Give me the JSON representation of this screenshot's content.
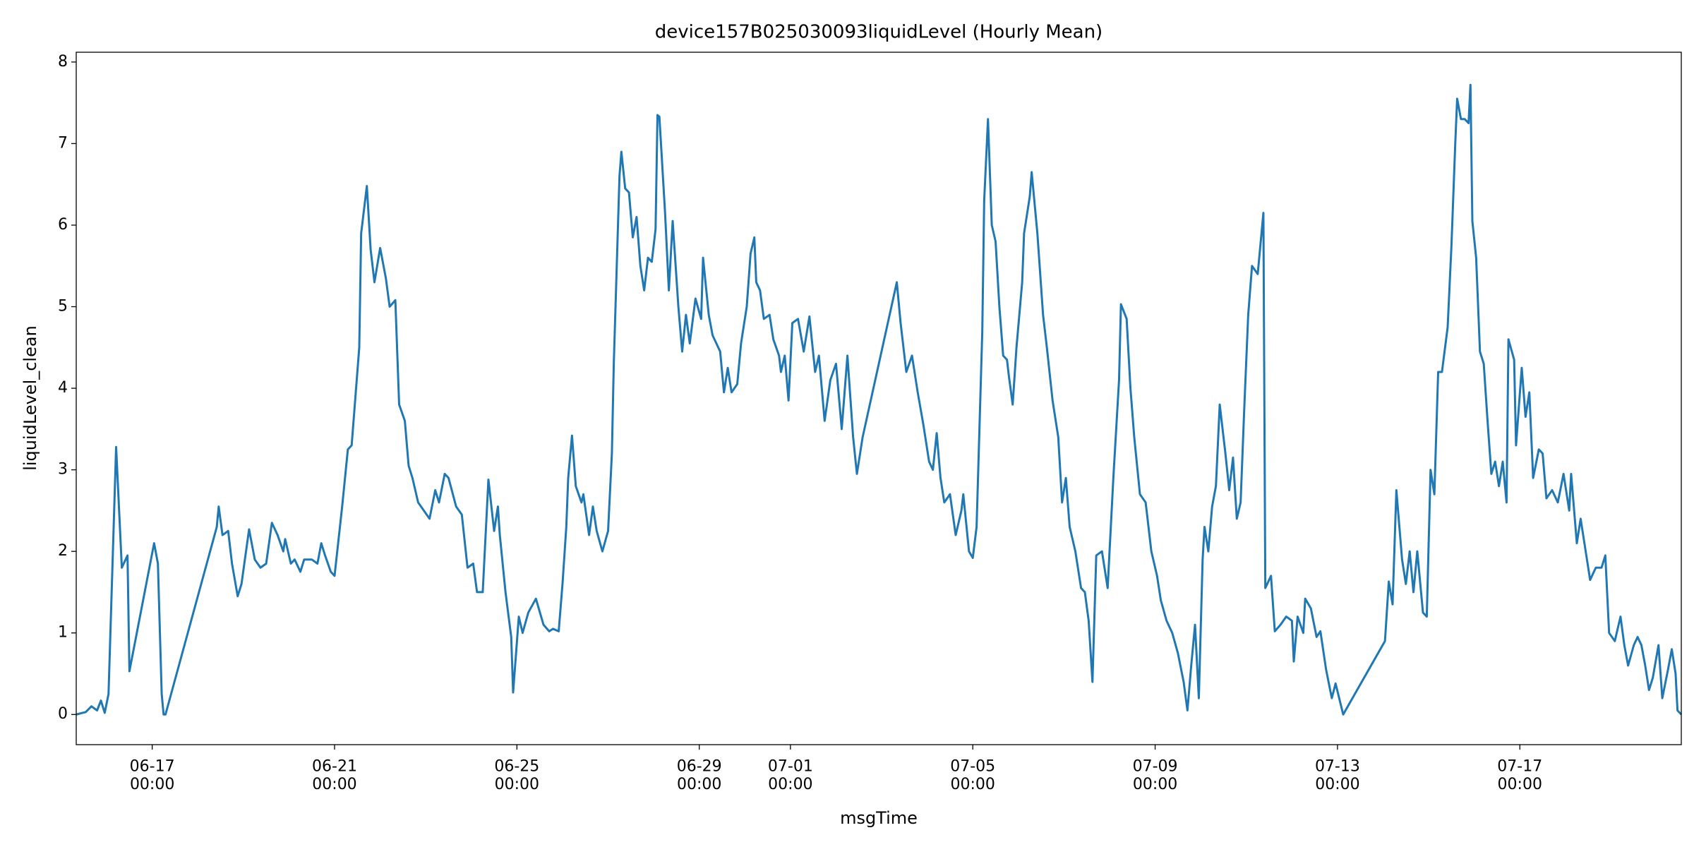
{
  "chart_data": {
    "type": "line",
    "title": "device157B025030093liquidLevel (Hourly Mean)",
    "x_label": "msgTime",
    "y_label": "liquidLevel_clean",
    "color": "#1f77b4",
    "grid": false,
    "x": [
      "06-15 08:00",
      "06-15 13:00",
      "06-15 16:00",
      "06-15 19:00",
      "06-15 21:00",
      "06-15 23:00",
      "06-16 01:00",
      "06-16 05:00",
      "06-16 08:00",
      "06-16 11:00",
      "06-16 12:00",
      "06-17 01:00",
      "06-17 03:00",
      "06-17 05:00",
      "06-17 06:00",
      "06-17 07:00",
      "06-18 10:00",
      "06-18 11:00",
      "06-18 13:00",
      "06-18 16:00",
      "06-18 18:00",
      "06-18 21:00",
      "06-18 23:00",
      "06-19 03:00",
      "06-19 06:00",
      "06-19 09:00",
      "06-19 12:00",
      "06-19 15:00",
      "06-19 18:00",
      "06-19 21:00",
      "06-19 22:00",
      "06-20 01:00",
      "06-20 03:00",
      "06-20 06:00",
      "06-20 08:00",
      "06-20 12:00",
      "06-20 15:00",
      "06-20 17:00",
      "06-20 19:00",
      "06-20 22:00",
      "06-21 00:00",
      "06-21 04:00",
      "06-21 07:00",
      "06-21 09:00",
      "06-21 13:00",
      "06-21 14:00",
      "06-21 17:00",
      "06-21 19:00",
      "06-21 21:00",
      "06-22 00:00",
      "06-22 03:00",
      "06-22 05:00",
      "06-22 08:00",
      "06-22 10:00",
      "06-22 13:00",
      "06-22 15:00",
      "06-22 17:00",
      "06-22 20:00",
      "06-22 23:00",
      "06-23 02:00",
      "06-23 05:00",
      "06-23 07:00",
      "06-23 10:00",
      "06-23 12:00",
      "06-23 16:00",
      "06-23 19:00",
      "06-23 22:00",
      "06-24 01:00",
      "06-24 03:00",
      "06-24 06:00",
      "06-24 09:00",
      "06-24 12:00",
      "06-24 14:00",
      "06-24 15:00",
      "06-24 18:00",
      "06-24 21:00",
      "06-24 22:00",
      "06-25 01:00",
      "06-25 03:00",
      "06-25 06:00",
      "06-25 10:00",
      "06-25 14:00",
      "06-25 17:00",
      "06-25 19:00",
      "06-25 22:00",
      "06-26 00:00",
      "06-26 02:00",
      "06-26 03:00",
      "06-26 05:00",
      "06-26 07:00",
      "06-26 10:00",
      "06-26 11:00",
      "06-26 14:00",
      "06-26 16:00",
      "06-26 18:00",
      "06-26 21:00",
      "06-27 00:00",
      "06-27 02:00",
      "06-27 03:00",
      "06-27 06:00",
      "06-27 07:00",
      "06-27 09:00",
      "06-27 11:00",
      "06-27 13:00",
      "06-27 15:00",
      "06-27 17:00",
      "06-27 19:00",
      "06-27 21:00",
      "06-27 23:00",
      "06-28 01:00",
      "06-28 02:00",
      "06-28 03:00",
      "06-28 06:00",
      "06-28 08:00",
      "06-28 10:00",
      "06-28 13:00",
      "06-28 15:00",
      "06-28 17:00",
      "06-28 19:00",
      "06-28 22:00",
      "06-29 01:00",
      "06-29 02:00",
      "06-29 05:00",
      "06-29 07:00",
      "06-29 09:00",
      "06-29 11:00",
      "06-29 13:00",
      "06-29 15:00",
      "06-29 17:00",
      "06-29 20:00",
      "06-29 22:00",
      "06-30 01:00",
      "06-30 03:00",
      "06-30 05:00",
      "06-30 06:00",
      "06-30 08:00",
      "06-30 10:00",
      "06-30 13:00",
      "06-30 15:00",
      "06-30 18:00",
      "06-30 19:00",
      "06-30 21:00",
      "06-30 23:00",
      "07-01 01:00",
      "07-01 04:00",
      "07-01 07:00",
      "07-01 10:00",
      "07-01 13:00",
      "07-01 15:00",
      "07-01 18:00",
      "07-01 21:00",
      "07-02 00:00",
      "07-02 03:00",
      "07-02 06:00",
      "07-02 09:00",
      "07-02 11:00",
      "07-02 14:00",
      "07-03 08:00",
      "07-03 10:00",
      "07-03 13:00",
      "07-03 16:00",
      "07-03 19:00",
      "07-03 22:00",
      "07-04 01:00",
      "07-04 03:00",
      "07-04 05:00",
      "07-04 07:00",
      "07-04 09:00",
      "07-04 12:00",
      "07-04 15:00",
      "07-04 18:00",
      "07-04 19:00",
      "07-04 22:00",
      "07-05 00:00",
      "07-05 02:00",
      "07-05 05:00",
      "07-05 06:00",
      "07-05 08:00",
      "07-05 10:00",
      "07-05 12:00",
      "07-05 14:00",
      "07-05 16:00",
      "07-05 18:00",
      "07-05 19:00",
      "07-05 21:00",
      "07-05 23:00",
      "07-06 02:00",
      "07-06 03:00",
      "07-06 06:00",
      "07-06 07:00",
      "07-06 10:00",
      "07-06 13:00",
      "07-06 15:00",
      "07-06 18:00",
      "07-06 21:00",
      "07-06 23:00",
      "07-07 01:00",
      "07-07 03:00",
      "07-07 06:00",
      "07-07 09:00",
      "07-07 11:00",
      "07-07 13:00",
      "07-07 15:00",
      "07-07 17:00",
      "07-07 20:00",
      "07-07 23:00",
      "07-08 02:00",
      "07-08 05:00",
      "07-08 06:00",
      "07-08 09:00",
      "07-08 11:00",
      "07-08 13:00",
      "07-08 16:00",
      "07-08 19:00",
      "07-08 22:00",
      "07-09 01:00",
      "07-09 03:00",
      "07-09 06:00",
      "07-09 09:00",
      "07-09 12:00",
      "07-09 15:00",
      "07-09 17:00",
      "07-09 19:00",
      "07-09 21:00",
      "07-09 23:00",
      "07-10 01:00",
      "07-10 02:00",
      "07-10 04:00",
      "07-10 06:00",
      "07-10 08:00",
      "07-10 10:00",
      "07-10 13:00",
      "07-10 15:00",
      "07-10 17:00",
      "07-10 19:00",
      "07-10 21:00",
      "07-10 23:00",
      "07-11 01:00",
      "07-11 03:00",
      "07-11 06:00",
      "07-11 09:00",
      "07-11 10:00",
      "07-11 13:00",
      "07-11 15:00",
      "07-11 18:00",
      "07-11 21:00",
      "07-12 00:00",
      "07-12 01:00",
      "07-12 03:00",
      "07-12 06:00",
      "07-12 07:00",
      "07-12 10:00",
      "07-12 13:00",
      "07-12 15:00",
      "07-12 18:00",
      "07-12 21:00",
      "07-12 23:00",
      "07-13 03:00",
      "07-14 01:00",
      "07-14 03:00",
      "07-14 05:00",
      "07-14 07:00",
      "07-14 10:00",
      "07-14 12:00",
      "07-14 14:00",
      "07-14 16:00",
      "07-14 18:00",
      "07-14 21:00",
      "07-14 23:00",
      "07-15 01:00",
      "07-15 03:00",
      "07-15 05:00",
      "07-15 07:00",
      "07-15 10:00",
      "07-15 12:00",
      "07-15 14:00",
      "07-15 15:00",
      "07-15 17:00",
      "07-15 19:00",
      "07-15 21:00",
      "07-15 22:00",
      "07-15 23:00",
      "07-16 01:00",
      "07-16 03:00",
      "07-16 05:00",
      "07-16 07:00",
      "07-16 09:00",
      "07-16 11:00",
      "07-16 13:00",
      "07-16 15:00",
      "07-16 17:00",
      "07-16 18:00",
      "07-16 21:00",
      "07-16 22:00",
      "07-17 01:00",
      "07-17 03:00",
      "07-17 05:00",
      "07-17 07:00",
      "07-17 10:00",
      "07-17 12:00",
      "07-17 14:00",
      "07-17 17:00",
      "07-17 20:00",
      "07-17 23:00",
      "07-18 02:00",
      "07-18 03:00",
      "07-18 06:00",
      "07-18 08:00",
      "07-18 11:00",
      "07-18 13:00",
      "07-18 16:00",
      "07-18 19:00",
      "07-18 21:00",
      "07-18 23:00",
      "07-19 02:00",
      "07-19 05:00",
      "07-19 07:00",
      "07-19 09:00",
      "07-19 12:00",
      "07-19 14:00",
      "07-19 16:00",
      "07-19 18:00",
      "07-19 20:00",
      "07-19 22:00",
      "07-20 01:00",
      "07-20 03:00",
      "07-20 06:00",
      "07-20 08:00",
      "07-20 10:00",
      "07-20 11:00",
      "07-20 13:00"
    ],
    "values": [
      0.0,
      0.03,
      0.1,
      0.05,
      0.17,
      0.02,
      0.25,
      3.28,
      1.8,
      1.95,
      0.53,
      2.1,
      1.85,
      0.25,
      0.0,
      0.0,
      2.3,
      2.55,
      2.2,
      2.25,
      1.85,
      1.45,
      1.6,
      2.27,
      1.9,
      1.8,
      1.85,
      2.35,
      2.2,
      2.0,
      2.15,
      1.85,
      1.9,
      1.75,
      1.9,
      1.9,
      1.85,
      2.1,
      1.95,
      1.75,
      1.7,
      2.55,
      3.25,
      3.3,
      4.5,
      5.9,
      6.48,
      5.7,
      5.3,
      5.72,
      5.35,
      5.0,
      5.08,
      3.8,
      3.6,
      3.05,
      2.9,
      2.6,
      2.5,
      2.4,
      2.75,
      2.6,
      2.95,
      2.9,
      2.55,
      2.45,
      1.8,
      1.85,
      1.5,
      1.5,
      2.88,
      2.25,
      2.55,
      2.2,
      1.5,
      0.95,
      0.27,
      1.2,
      1.0,
      1.25,
      1.42,
      1.1,
      1.02,
      1.05,
      1.02,
      1.6,
      2.3,
      2.9,
      3.42,
      2.8,
      2.6,
      2.7,
      2.2,
      2.55,
      2.25,
      2.0,
      2.25,
      3.2,
      4.3,
      6.6,
      6.9,
      6.45,
      6.4,
      5.85,
      6.1,
      5.5,
      5.2,
      5.6,
      5.55,
      5.95,
      7.35,
      7.33,
      6.15,
      5.2,
      6.05,
      5.0,
      4.45,
      4.9,
      4.55,
      5.1,
      4.85,
      5.6,
      4.9,
      4.65,
      4.55,
      4.45,
      3.95,
      4.25,
      3.95,
      4.05,
      4.55,
      5.0,
      5.65,
      5.85,
      5.3,
      5.2,
      4.85,
      4.9,
      4.6,
      4.4,
      4.2,
      4.4,
      3.85,
      4.8,
      4.85,
      4.45,
      4.88,
      4.2,
      4.4,
      3.6,
      4.1,
      4.3,
      3.5,
      4.4,
      3.4,
      2.95,
      3.4,
      5.3,
      4.8,
      4.2,
      4.4,
      3.95,
      3.55,
      3.1,
      3.0,
      3.45,
      2.9,
      2.6,
      2.7,
      2.2,
      2.5,
      2.7,
      2.0,
      1.92,
      2.3,
      4.7,
      6.3,
      7.3,
      6.0,
      5.8,
      5.0,
      4.4,
      4.35,
      4.15,
      3.8,
      4.5,
      5.3,
      5.9,
      6.35,
      6.65,
      5.9,
      4.9,
      4.5,
      3.85,
      3.4,
      2.6,
      2.9,
      2.3,
      2.0,
      1.55,
      1.5,
      1.15,
      0.4,
      1.95,
      2.0,
      1.55,
      2.9,
      4.1,
      5.03,
      4.85,
      4.0,
      3.4,
      2.7,
      2.6,
      2.0,
      1.7,
      1.4,
      1.15,
      1.0,
      0.75,
      0.4,
      0.05,
      0.6,
      1.1,
      0.2,
      1.9,
      2.3,
      2.0,
      2.55,
      2.8,
      3.8,
      3.2,
      2.75,
      3.15,
      2.4,
      2.6,
      3.8,
      4.9,
      5.5,
      5.4,
      6.15,
      1.55,
      1.7,
      1.02,
      1.1,
      1.2,
      1.15,
      0.65,
      1.2,
      1.0,
      1.42,
      1.3,
      0.95,
      1.02,
      0.55,
      0.2,
      0.38,
      0.0,
      0.9,
      1.63,
      1.35,
      2.75,
      1.9,
      1.6,
      2.0,
      1.5,
      2.0,
      1.25,
      1.2,
      3.0,
      2.7,
      4.2,
      4.2,
      4.75,
      5.75,
      7.0,
      7.55,
      7.3,
      7.3,
      7.25,
      7.72,
      6.05,
      5.6,
      4.45,
      4.3,
      3.6,
      2.95,
      3.1,
      2.8,
      3.1,
      2.6,
      4.6,
      4.35,
      3.3,
      4.25,
      3.65,
      3.95,
      2.9,
      3.25,
      3.2,
      2.65,
      2.75,
      2.6,
      2.95,
      2.5,
      2.95,
      2.1,
      2.4,
      1.95,
      1.65,
      1.8,
      1.8,
      1.95,
      1.0,
      0.9,
      1.2,
      0.85,
      0.6,
      0.85,
      0.95,
      0.85,
      0.6,
      0.3,
      0.45,
      0.85,
      0.2,
      0.55,
      0.8,
      0.5,
      0.05,
      0.0
    ],
    "xlim": [
      "06-15 08:00",
      "07-20 13:00"
    ],
    "xticks": [
      "06-17 00:00",
      "06-21 00:00",
      "06-25 00:00",
      "06-29 00:00",
      "07-01 00:00",
      "07-05 00:00",
      "07-09 00:00",
      "07-13 00:00",
      "07-17 00:00"
    ],
    "ylim": [
      -0.37,
      8.12
    ],
    "yticks": [
      0,
      1,
      2,
      3,
      4,
      5,
      6,
      7,
      8
    ]
  }
}
